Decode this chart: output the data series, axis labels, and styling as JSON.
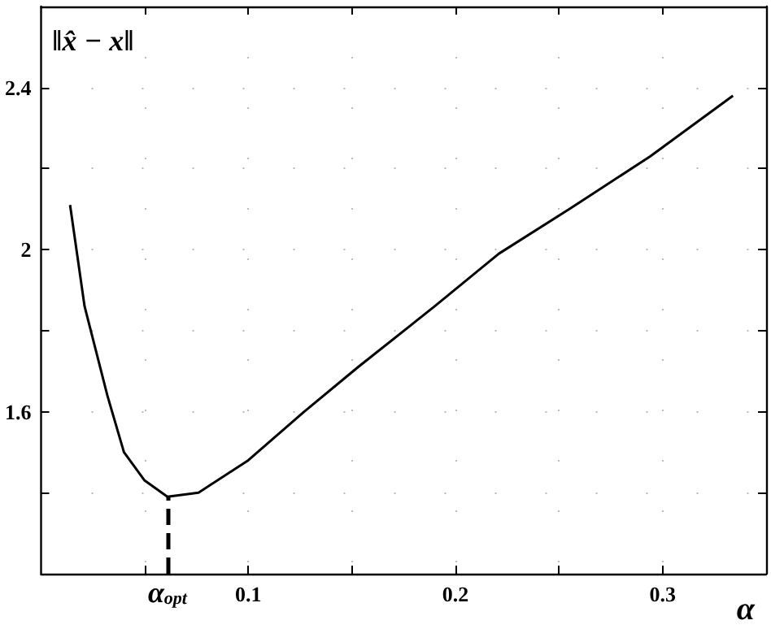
{
  "chart_data": {
    "type": "line",
    "ylabel": "‖x̂ − x‖",
    "xlabel": "α",
    "x": [
      0.014,
      0.021,
      0.032,
      0.04,
      0.05,
      0.061,
      0.076,
      0.1,
      0.127,
      0.153,
      0.19,
      0.221,
      0.255,
      0.294,
      0.334
    ],
    "series": [
      {
        "color": "#000000",
        "values": [
          2.11,
          1.86,
          1.64,
          1.5,
          1.43,
          1.39,
          1.4,
          1.48,
          1.6,
          1.71,
          1.86,
          1.99,
          2.1,
          2.23,
          2.38
        ]
      }
    ],
    "xlim": [
      0,
      0.35
    ],
    "ylim": [
      1.2,
      2.6
    ],
    "xticks": [
      {
        "value": 0.05,
        "label": null
      },
      0.1,
      {
        "value": 0.15,
        "label": null
      },
      0.2,
      {
        "value": 0.25,
        "label": null
      },
      0.3
    ],
    "yticks": [
      {
        "value": 1.4,
        "label": null
      },
      1.6,
      {
        "value": 1.8,
        "label": null
      },
      2,
      {
        "value": 2.2,
        "label": null
      },
      2.4
    ],
    "ref_lines": [
      {
        "axis": "x",
        "value": 0.061,
        "label": "α$_{opt}$",
        "line_style": "dashed"
      }
    ],
    "grid": true,
    "marker": "none",
    "line_style": "solid"
  }
}
